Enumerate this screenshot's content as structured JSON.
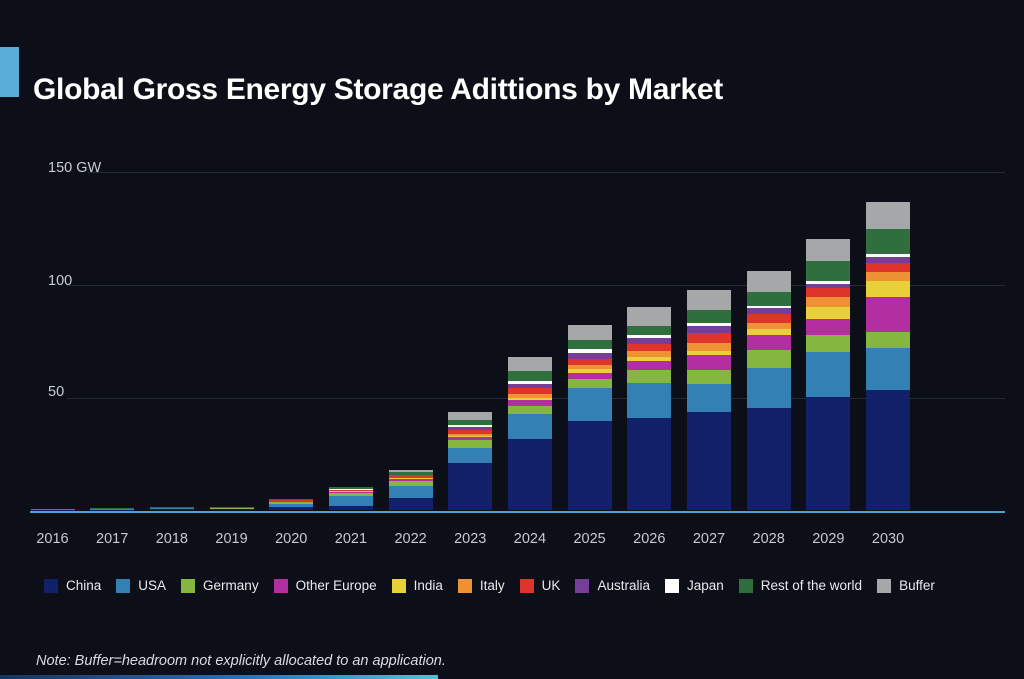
{
  "page": {
    "title": "Global Gross Energy Storage Adittions by Market",
    "note": "Note: Buffer=headroom not explicitly allocated to an application."
  },
  "colors": {
    "background": "#0c0f17",
    "title_accent": "#5badd9",
    "axis_baseline": "#4da0d4",
    "gridline": "#252b34",
    "axis_text": "#c7ccd1"
  },
  "chart_data": {
    "type": "bar",
    "stacked": true,
    "unit": "GW",
    "ylim": [
      0,
      150
    ],
    "grid": "horizontal",
    "legend_position": "bottom",
    "yticks": [
      {
        "value": 150,
        "label": "150 GW"
      },
      {
        "value": 100,
        "label": "100"
      },
      {
        "value": 50,
        "label": "50"
      }
    ],
    "categories": [
      "2016",
      "2017",
      "2018",
      "2019",
      "2020",
      "2021",
      "2022",
      "2023",
      "2024",
      "2025",
      "2026",
      "2027",
      "2028",
      "2029",
      "2030"
    ],
    "series": [
      {
        "name": "China",
        "color": "#122069",
        "values": [
          0.2,
          0.2,
          0.4,
          0.3,
          1.2,
          1.9,
          5.2,
          20.8,
          31.4,
          39.2,
          40.8,
          43.2,
          45.0,
          50.1,
          52.9
        ]
      },
      {
        "name": "USA",
        "color": "#3380b5",
        "values": [
          0.2,
          0.2,
          0.4,
          0.3,
          1.5,
          4.4,
          5.2,
          6.7,
          11.3,
          14.8,
          15.6,
          12.6,
          17.8,
          19.7,
          19.0
        ]
      },
      {
        "name": "Germany",
        "color": "#85b740",
        "values": [
          0.1,
          0.1,
          0.2,
          0.2,
          0.8,
          1.4,
          2.2,
          3.7,
          3.2,
          4.0,
          5.5,
          6.2,
          7.9,
          7.6,
          6.7
        ]
      },
      {
        "name": "Other Europe",
        "color": "#b32ea0",
        "values": [
          0,
          0.1,
          0.1,
          0.1,
          0.4,
          0.3,
          1.2,
          1.0,
          2.7,
          2.7,
          3.9,
          6.4,
          6.7,
          7.1,
          15.6
        ]
      },
      {
        "name": "India",
        "color": "#e8d039",
        "values": [
          0,
          0,
          0,
          0,
          0.1,
          0.3,
          0.3,
          0.4,
          0.8,
          1.8,
          2.1,
          1.9,
          2.8,
          5.2,
          7.1
        ]
      },
      {
        "name": "Italy",
        "color": "#ef9233",
        "values": [
          0,
          0,
          0,
          0,
          0.1,
          0.2,
          0.2,
          1.2,
          1.8,
          1.9,
          2.4,
          3.6,
          2.8,
          4.4,
          4.0
        ]
      },
      {
        "name": "UK",
        "color": "#df342b",
        "values": [
          0,
          0,
          0,
          0,
          0.2,
          0.3,
          1.0,
          1.8,
          2.7,
          2.5,
          3.0,
          4.4,
          3.8,
          4.0,
          4.0
        ]
      },
      {
        "name": "Australia",
        "color": "#763d99",
        "values": [
          0,
          0,
          0,
          0,
          0.1,
          0.2,
          0.2,
          1.0,
          1.8,
          2.7,
          2.8,
          3.2,
          2.8,
          1.9,
          2.7
        ]
      },
      {
        "name": "Japan",
        "color": "#ffffff",
        "values": [
          0,
          0,
          0,
          0,
          0.1,
          0.1,
          0.1,
          0.9,
          1.5,
          1.5,
          1.2,
          1.5,
          0.9,
          1.3,
          1.2
        ]
      },
      {
        "name": "Rest of the world",
        "color": "#2e6f3d",
        "values": [
          0.1,
          0.1,
          0.3,
          0.3,
          0.4,
          1.0,
          1.0,
          2.5,
          4.4,
          4.1,
          4.4,
          5.6,
          6.0,
          8.9,
          11.4
        ]
      },
      {
        "name": "Buffer",
        "color": "#a5a7a9",
        "values": [
          0,
          0,
          0,
          0,
          0,
          0,
          1.1,
          3.2,
          6.2,
          6.7,
          8.4,
          8.9,
          9.5,
          9.8,
          11.9
        ]
      }
    ]
  }
}
